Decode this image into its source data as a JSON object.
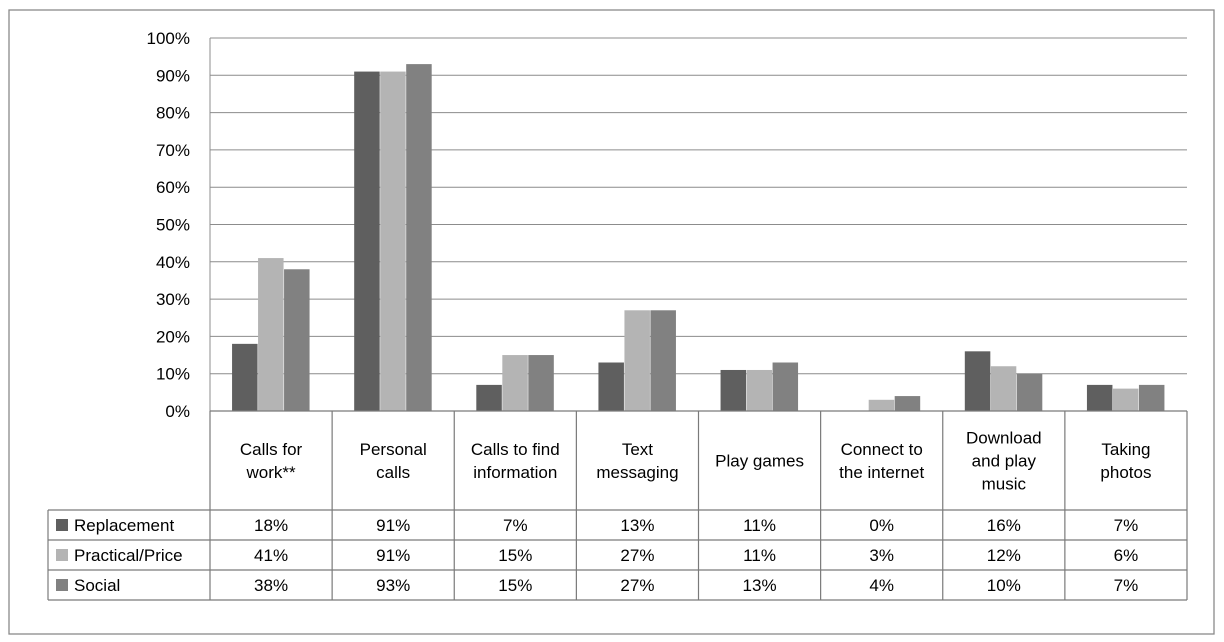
{
  "chart_data": {
    "type": "bar",
    "title": "",
    "xlabel": "",
    "ylabel": "",
    "ylim": [
      0,
      100
    ],
    "y_ticks": [
      "0%",
      "10%",
      "20%",
      "30%",
      "40%",
      "50%",
      "60%",
      "70%",
      "80%",
      "90%",
      "100%"
    ],
    "grid": true,
    "legend": "data-table-left",
    "categories": [
      [
        "Calls for",
        "work**"
      ],
      [
        "Personal",
        "calls"
      ],
      [
        "Calls to find",
        "information"
      ],
      [
        "Text",
        "messaging"
      ],
      [
        "Play games"
      ],
      [
        "Connect to",
        "the internet"
      ],
      [
        "Download",
        "and play",
        "music"
      ],
      [
        "Taking",
        "photos"
      ]
    ],
    "series": [
      {
        "name": "Replacement",
        "color": "#5f5f5f",
        "values": [
          18,
          91,
          7,
          13,
          11,
          0,
          16,
          7
        ],
        "labels": [
          "18%",
          "91%",
          "7%",
          "13%",
          "11%",
          "0%",
          "16%",
          "7%"
        ]
      },
      {
        "name": "Practical/Price",
        "color": "#b4b4b4",
        "values": [
          41,
          91,
          15,
          27,
          11,
          3,
          12,
          6
        ],
        "labels": [
          "41%",
          "91%",
          "15%",
          "27%",
          "11%",
          "3%",
          "12%",
          "6%"
        ]
      },
      {
        "name": "Social",
        "color": "#818181",
        "values": [
          38,
          93,
          15,
          27,
          13,
          4,
          10,
          7
        ],
        "labels": [
          "38%",
          "93%",
          "15%",
          "27%",
          "13%",
          "4%",
          "10%",
          "7%"
        ]
      }
    ]
  }
}
